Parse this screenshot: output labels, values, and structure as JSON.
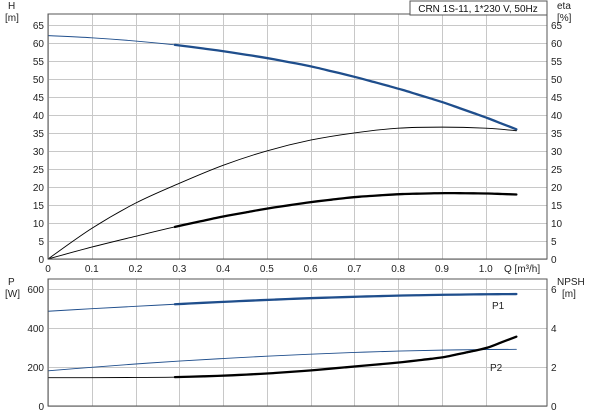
{
  "title": "CRN 1S-11, 1*230 V, 50Hz",
  "colors": {
    "blue": "#1f4e8c",
    "black": "#000000",
    "grid": "#c8c8c8"
  },
  "chart_data": [
    {
      "type": "line",
      "panel": "top",
      "xlabel": "Q [m³/h]",
      "xlim": [
        0,
        1.14
      ],
      "x_ticks": [
        0,
        0.1,
        0.2,
        0.3,
        0.4,
        0.5,
        0.6,
        0.7,
        0.8,
        0.9,
        1.0
      ],
      "x_tick_labels": [
        "0",
        "0.1",
        "0.2",
        "0.3",
        "0.4",
        "0.5",
        "0.6",
        "0.7",
        "0.8",
        "0.9",
        "1.0"
      ],
      "y_left": {
        "label_top": "H",
        "label_bottom": "[m]",
        "lim": [
          0,
          68
        ],
        "ticks": [
          0,
          5,
          10,
          15,
          20,
          25,
          30,
          35,
          40,
          45,
          50,
          55,
          60,
          65
        ],
        "tick_labels": [
          "0",
          "5",
          "10",
          "15",
          "20",
          "25",
          "30",
          "35",
          "40",
          "45",
          "50",
          "55",
          "60",
          "65"
        ]
      },
      "y_right": {
        "label_top": "eta",
        "label_bottom": "[%]",
        "lim": [
          0,
          68
        ],
        "ticks": [
          0,
          5,
          10,
          15,
          20,
          25,
          30,
          35,
          40,
          45,
          50,
          55,
          60,
          65
        ],
        "tick_labels": [
          "0",
          "5",
          "10",
          "15",
          "20",
          "25",
          "30",
          "35",
          "40",
          "45",
          "50",
          "55",
          "60",
          "65"
        ]
      },
      "series": [
        {
          "key": "H",
          "axis": "left",
          "color": "#1f4e8c",
          "x": [
            0,
            0.1,
            0.2,
            0.3,
            0.4,
            0.5,
            0.6,
            0.7,
            0.8,
            0.9,
            1.0,
            1.07
          ],
          "y": [
            62,
            61.4,
            60.5,
            59.3,
            57.7,
            55.8,
            53.5,
            50.6,
            47.3,
            43.6,
            39.3,
            36.0
          ],
          "thick_from": 0.29,
          "thick_to": 1.07
        },
        {
          "key": "eta",
          "axis": "right",
          "color": "#000000",
          "x": [
            0,
            0.1,
            0.2,
            0.3,
            0.4,
            0.5,
            0.6,
            0.7,
            0.8,
            0.9,
            1.0,
            1.07
          ],
          "y": [
            0,
            8.5,
            15.5,
            21.0,
            26.0,
            30.0,
            33.0,
            35.0,
            36.3,
            36.6,
            36.3,
            35.6
          ],
          "thick_from": null,
          "thick_to": null
        },
        {
          "key": "eta_thick",
          "axis": "right",
          "color": "#000000",
          "x": [
            0,
            0.1,
            0.2,
            0.3,
            0.4,
            0.5,
            0.6,
            0.7,
            0.8,
            0.9,
            1.0,
            1.07
          ],
          "y": [
            0,
            3.3,
            6.3,
            9.2,
            11.8,
            14.0,
            15.8,
            17.2,
            18.0,
            18.3,
            18.2,
            17.9
          ],
          "thick_from": 0.29,
          "thick_to": 1.07
        }
      ]
    },
    {
      "type": "line",
      "panel": "bottom",
      "xlim": [
        0,
        1.14
      ],
      "y_left": {
        "label_top": "P",
        "label_bottom": "[W]",
        "lim": [
          0,
          650
        ],
        "ticks": [
          0,
          200,
          400,
          600
        ],
        "tick_labels": [
          "0",
          "200",
          "400",
          "600"
        ]
      },
      "y_right": {
        "label_top": "NPSH",
        "label_bottom": "[m]",
        "lim": [
          0,
          6.5
        ],
        "ticks": [
          0,
          2,
          4,
          6
        ],
        "tick_labels": [
          "0",
          "2",
          "4",
          "6"
        ]
      },
      "series": [
        {
          "key": "P1",
          "name": "P1",
          "axis": "left",
          "color": "#1f4e8c",
          "x": [
            0,
            0.1,
            0.2,
            0.3,
            0.4,
            0.5,
            0.6,
            0.7,
            0.8,
            0.9,
            1.0,
            1.07
          ],
          "y": [
            485,
            498,
            510,
            522,
            533,
            543,
            552,
            559,
            565,
            569,
            572,
            573
          ],
          "thick_from": 0.29,
          "thick_to": 1.07
        },
        {
          "key": "P2",
          "name": "P2",
          "axis": "left",
          "color": "#1f4e8c",
          "x": [
            0,
            0.1,
            0.2,
            0.3,
            0.4,
            0.5,
            0.6,
            0.7,
            0.8,
            0.9,
            1.0,
            1.07
          ],
          "y": [
            180,
            198,
            215,
            230,
            243,
            255,
            265,
            274,
            281,
            286,
            289,
            290
          ],
          "thick_from": null,
          "thick_to": null
        },
        {
          "key": "NPSH",
          "axis": "right",
          "color": "#000000",
          "x": [
            0,
            0.1,
            0.2,
            0.3,
            0.4,
            0.5,
            0.6,
            0.7,
            0.8,
            0.9,
            1.0,
            1.07
          ],
          "y": [
            1.45,
            1.45,
            1.46,
            1.48,
            1.55,
            1.66,
            1.82,
            2.02,
            2.22,
            2.48,
            2.95,
            3.55
          ],
          "thick_from": 0.29,
          "thick_to": 1.07
        }
      ]
    }
  ]
}
